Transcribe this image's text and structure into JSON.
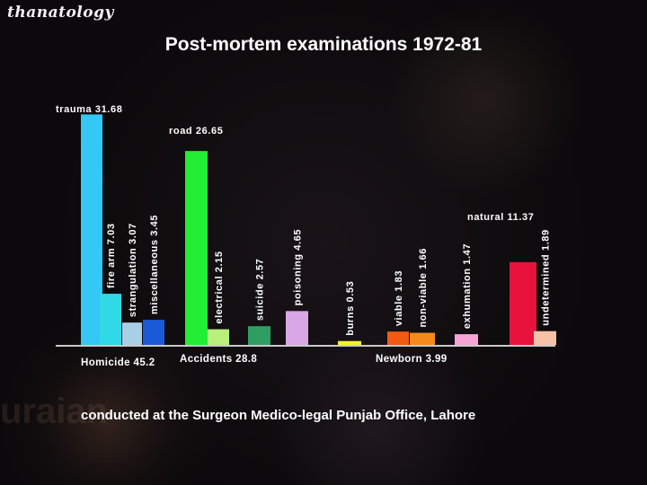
{
  "header": {
    "brand": "thanatology",
    "title": "Post-mortem examinations  1972-81"
  },
  "footer": {
    "text": "conducted at the Surgeon Medico-legal Punjab Office, Lahore"
  },
  "chart_data": {
    "type": "bar",
    "title": "Post-mortem examinations  1972-81",
    "groups": [
      {
        "label": "Homicide 45.2",
        "value": 45.2
      },
      {
        "label": "Accidents 28.8",
        "value": 28.8
      },
      {
        "label": "Newborn 3.99",
        "value": 3.99
      }
    ],
    "bars": [
      {
        "label": "trauma 31.68",
        "value": 31.68,
        "group": "Homicide",
        "color": "#33c8f5",
        "orient": "horizontal"
      },
      {
        "label": "fire arm 7.03",
        "value": 7.03,
        "group": "Homicide",
        "color": "#2fd9e6",
        "orient": "vertical"
      },
      {
        "label": "strangulation 3.07",
        "value": 3.07,
        "group": "Homicide",
        "color": "#a9cfe6",
        "orient": "vertical"
      },
      {
        "label": "miscellaneous 3.45",
        "value": 3.45,
        "group": "Homicide",
        "color": "#1a5ad8",
        "orient": "vertical"
      },
      {
        "label": "road 26.65",
        "value": 26.65,
        "group": "Accidents",
        "color": "#22ee33",
        "orient": "horizontal"
      },
      {
        "label": "electrical 2.15",
        "value": 2.15,
        "group": "Accidents",
        "color": "#b9f07a",
        "orient": "vertical"
      },
      {
        "label": "suicide 2.57",
        "value": 2.57,
        "group": "Accidents",
        "color": "#2f9e63",
        "orient": "vertical"
      },
      {
        "label": "poisoning 4.65",
        "value": 4.65,
        "group": "Accidents",
        "color": "#d8a8e6",
        "orient": "vertical"
      },
      {
        "label": "burns 0.53",
        "value": 0.53,
        "group": "Accidents",
        "color": "#f4f22a",
        "orient": "vertical"
      },
      {
        "label": "viable 1.83",
        "value": 1.83,
        "group": "Newborn",
        "color": "#f25a12",
        "orient": "vertical"
      },
      {
        "label": "non-viable 1.66",
        "value": 1.66,
        "group": "Newborn",
        "color": "#f58a1a",
        "orient": "vertical"
      },
      {
        "label": "exhumation 1.47",
        "value": 1.47,
        "group": "Newborn",
        "color": "#f7a3d8",
        "orient": "vertical"
      },
      {
        "label": "natural 11.37",
        "value": 11.37,
        "group": "Newborn",
        "color": "#e8123d",
        "orient": "horizontal"
      },
      {
        "label": "undetermined 1.89",
        "value": 1.89,
        "group": "Newborn",
        "color": "#f5c2a8",
        "orient": "vertical"
      }
    ],
    "ylim": [
      0,
      32
    ]
  }
}
